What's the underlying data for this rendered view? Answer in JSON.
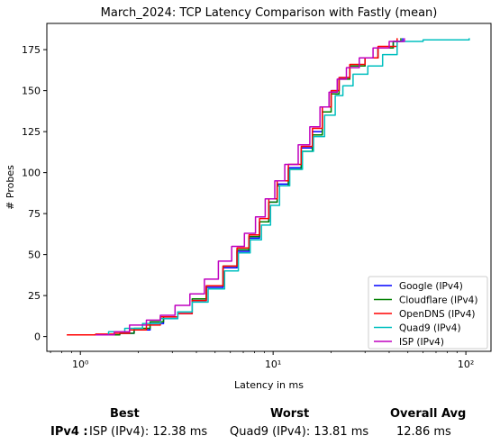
{
  "chart_data": {
    "type": "line",
    "title": "March_2024: TCP Latency Comparison with Fastly (mean)",
    "xlabel": "Latency in ms",
    "ylabel": "# Probes",
    "xscale": "log",
    "xlim": [
      0.67,
      135
    ],
    "ylim": [
      -9,
      191
    ],
    "xticks": [
      1,
      10,
      100
    ],
    "xtick_labels": [
      "10⁰",
      "10¹",
      "10²"
    ],
    "yticks": [
      0,
      25,
      50,
      75,
      100,
      125,
      150,
      175
    ],
    "grid": false,
    "legend_position": "lower-right",
    "series": [
      {
        "name": "Google (IPv4)",
        "color": "#0000ff",
        "points": [
          [
            1.3,
            1
          ],
          [
            1.6,
            2
          ],
          [
            1.9,
            4
          ],
          [
            2.3,
            8
          ],
          [
            2.7,
            11
          ],
          [
            3.2,
            14
          ],
          [
            3.8,
            22
          ],
          [
            4.5,
            30
          ],
          [
            5.5,
            42
          ],
          [
            6.5,
            52
          ],
          [
            7.5,
            60
          ],
          [
            8.5,
            70
          ],
          [
            9.5,
            82
          ],
          [
            10.5,
            93
          ],
          [
            12,
            103
          ],
          [
            14,
            115
          ],
          [
            16,
            125
          ],
          [
            18,
            140
          ],
          [
            20,
            150
          ],
          [
            22,
            158
          ],
          [
            25,
            165
          ],
          [
            30,
            170
          ],
          [
            35,
            176
          ],
          [
            42,
            180
          ],
          [
            47,
            182
          ]
        ]
      },
      {
        "name": "Cloudflare (IPv4)",
        "color": "#008000",
        "points": [
          [
            1.3,
            1
          ],
          [
            1.6,
            2
          ],
          [
            1.9,
            5
          ],
          [
            2.3,
            9
          ],
          [
            2.7,
            12
          ],
          [
            3.2,
            15
          ],
          [
            3.8,
            23
          ],
          [
            4.5,
            31
          ],
          [
            5.5,
            43
          ],
          [
            6.5,
            53
          ],
          [
            7.5,
            61
          ],
          [
            8.5,
            70
          ],
          [
            9.5,
            82
          ],
          [
            10.5,
            92
          ],
          [
            12,
            102
          ],
          [
            14,
            113
          ],
          [
            16,
            123
          ],
          [
            18,
            137
          ],
          [
            20,
            148
          ],
          [
            22,
            157
          ],
          [
            25,
            165
          ],
          [
            30,
            170
          ],
          [
            35,
            176
          ],
          [
            42,
            180
          ],
          [
            46,
            182
          ]
        ]
      },
      {
        "name": "OpenDNS (IPv4)",
        "color": "#ff0000",
        "points": [
          [
            0.85,
            1
          ],
          [
            1.2,
            1.5
          ],
          [
            1.5,
            2
          ],
          [
            1.8,
            4
          ],
          [
            2.2,
            7
          ],
          [
            2.6,
            12
          ],
          [
            3.2,
            14
          ],
          [
            3.8,
            22
          ],
          [
            4.5,
            31
          ],
          [
            5.5,
            43
          ],
          [
            6.5,
            54
          ],
          [
            7.5,
            62
          ],
          [
            8.5,
            72
          ],
          [
            9.5,
            84
          ],
          [
            10.5,
            95
          ],
          [
            12,
            105
          ],
          [
            14,
            116
          ],
          [
            16,
            127
          ],
          [
            18,
            140
          ],
          [
            20,
            150
          ],
          [
            22,
            158
          ],
          [
            25,
            166
          ],
          [
            30,
            170
          ],
          [
            35,
            177
          ],
          [
            44,
            182
          ]
        ]
      },
      {
        "name": "Quad9 (IPv4)",
        "color": "#00bfbf",
        "points": [
          [
            1.2,
            1
          ],
          [
            1.4,
            3
          ],
          [
            1.7,
            5
          ],
          [
            2.1,
            8
          ],
          [
            2.6,
            11
          ],
          [
            3.2,
            15
          ],
          [
            3.8,
            21
          ],
          [
            4.6,
            29
          ],
          [
            5.6,
            40
          ],
          [
            6.6,
            51
          ],
          [
            7.6,
            59
          ],
          [
            8.7,
            68
          ],
          [
            9.7,
            80
          ],
          [
            10.8,
            92
          ],
          [
            12.2,
            102
          ],
          [
            14.2,
            113
          ],
          [
            16.2,
            122
          ],
          [
            18.5,
            135
          ],
          [
            21,
            147
          ],
          [
            23,
            153
          ],
          [
            26,
            160
          ],
          [
            31,
            165
          ],
          [
            37,
            172
          ],
          [
            44,
            180
          ],
          [
            60,
            181
          ],
          [
            104,
            182
          ]
        ]
      },
      {
        "name": "ISP (IPv4)",
        "color": "#bf00bf",
        "points": [
          [
            1.2,
            1
          ],
          [
            1.5,
            3
          ],
          [
            1.8,
            7
          ],
          [
            2.2,
            10
          ],
          [
            2.6,
            13
          ],
          [
            3.1,
            19
          ],
          [
            3.7,
            26
          ],
          [
            4.4,
            35
          ],
          [
            5.2,
            46
          ],
          [
            6.1,
            55
          ],
          [
            7.1,
            63
          ],
          [
            8.1,
            73
          ],
          [
            9.1,
            84
          ],
          [
            10.2,
            95
          ],
          [
            11.5,
            105
          ],
          [
            13.5,
            117
          ],
          [
            15.5,
            128
          ],
          [
            17.5,
            140
          ],
          [
            19.5,
            149
          ],
          [
            21.5,
            157
          ],
          [
            24,
            164
          ],
          [
            28,
            170
          ],
          [
            33,
            176
          ],
          [
            40,
            180
          ],
          [
            48,
            182
          ]
        ]
      }
    ]
  },
  "summary": {
    "best_heading": "Best",
    "worst_heading": "Worst",
    "avg_heading": "Overall Avg",
    "row_label": "IPv4 :",
    "best_value": "ISP (IPv4): 12.38 ms",
    "worst_value": "Quad9 (IPv4): 13.81 ms",
    "avg_value": "12.86 ms"
  }
}
